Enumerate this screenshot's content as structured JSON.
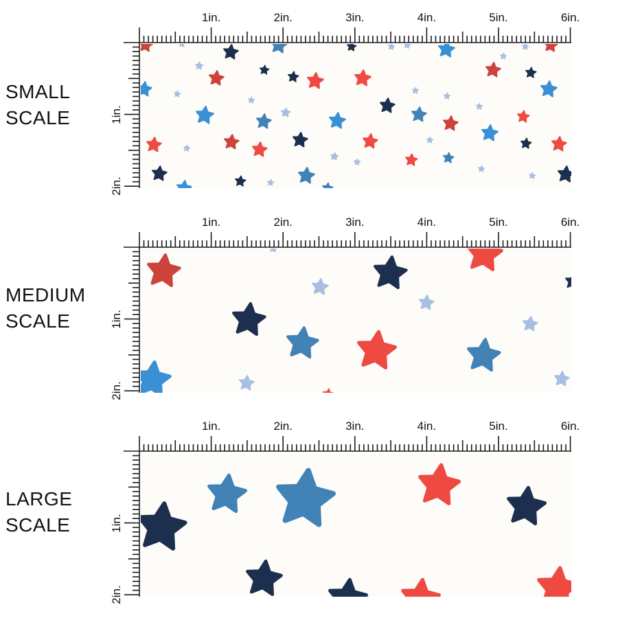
{
  "colors": {
    "background": "#fefcf9",
    "ruler": "#1a1a1a",
    "red": "#ee4a41",
    "brick": "#cb433b",
    "navy": "#1c2f4f",
    "blue": "#3a90d5",
    "steel": "#4182b7",
    "light": "#a8bfe1"
  },
  "ruler": {
    "horizontal_labels": [
      "1in.",
      "2in.",
      "3in.",
      "4in.",
      "5in.",
      "6in."
    ],
    "vertical_labels": [
      "1in.",
      "2in."
    ]
  },
  "panels": [
    {
      "id": "small",
      "label_line1": "SMALL",
      "label_line2": "SCALE"
    },
    {
      "id": "medium",
      "label_line1": "MEDIUM",
      "label_line2": "SCALE"
    },
    {
      "id": "large",
      "label_line1": "LARGE",
      "label_line2": "SCALE"
    }
  ]
}
